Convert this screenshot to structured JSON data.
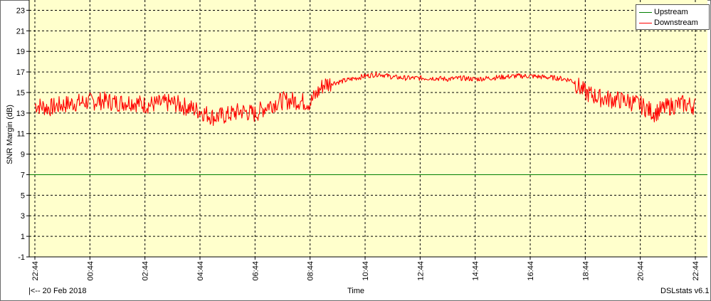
{
  "chart_data": {
    "type": "line",
    "title": "",
    "xlabel": "Time",
    "ylabel": "SNR Margin (dB)",
    "ylim": [
      -1,
      24
    ],
    "yticks": [
      -1,
      1,
      3,
      5,
      7,
      9,
      11,
      13,
      15,
      17,
      19,
      21,
      23
    ],
    "xticks": [
      "22:44",
      "00:44",
      "02:44",
      "04:44",
      "06:44",
      "08:44",
      "10:44",
      "12:44",
      "14:44",
      "16:44",
      "18:44",
      "20:44",
      "22:44"
    ],
    "xlim_hours": [
      0,
      24
    ],
    "grid": true,
    "legend_position": "top-right",
    "series": [
      {
        "name": "Upstream",
        "color": "#008000",
        "x": [
          0,
          24
        ],
        "y": [
          7,
          7
        ]
      },
      {
        "name": "Downstream",
        "color": "#ff0000",
        "x": [
          0,
          0.5,
          1,
          1.5,
          2,
          2.5,
          3,
          3.5,
          4,
          4.5,
          5,
          5.5,
          6,
          6.5,
          7,
          7.5,
          8,
          8.5,
          9,
          9.5,
          10,
          10.5,
          11,
          11.5,
          12,
          12.5,
          13,
          13.5,
          14,
          14.5,
          15,
          15.5,
          16,
          16.5,
          17,
          17.5,
          18,
          18.5,
          19,
          19.5,
          20,
          20.5,
          21,
          21.5,
          22,
          22.5,
          23,
          23.5,
          24
        ],
        "y": [
          13.8,
          13.5,
          13.8,
          14.0,
          14.1,
          14.2,
          14.0,
          14.1,
          13.8,
          13.9,
          14.0,
          13.6,
          13.2,
          12.6,
          12.8,
          13.2,
          12.9,
          13.8,
          14.2,
          14.2,
          14.0,
          15.8,
          16.0,
          16.3,
          16.6,
          16.8,
          16.5,
          16.4,
          16.4,
          16.4,
          16.3,
          16.4,
          16.3,
          16.4,
          16.5,
          16.6,
          16.6,
          16.5,
          16.4,
          16.2,
          15.0,
          14.5,
          14.3,
          14.2,
          13.8,
          13.0,
          13.6,
          13.9,
          13.7
        ]
      }
    ],
    "footer_left": "|<-- 20 Feb 2018",
    "footer_right": "DSLstats v6.1"
  }
}
